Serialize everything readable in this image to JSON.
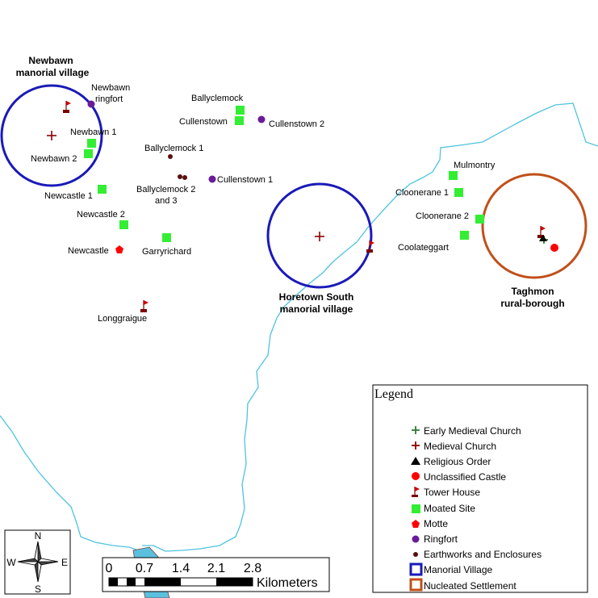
{
  "settlements": {
    "newbawn": [
      "Newbawn",
      "manorial village"
    ],
    "horetown": [
      "Horetown South",
      "manorial village"
    ],
    "taghmon": [
      "Taghmon",
      "rural-borough"
    ]
  },
  "sites": {
    "newbawn_ringfort": [
      "Newbawn",
      "ringfort"
    ],
    "ballyclemock": "Ballyclemock",
    "cullenstown": "Cullenstown",
    "cullenstown_2": "Cullenstown 2",
    "newbawn_1": "Newbawn 1",
    "newbawn_2": "Newbawn 2",
    "ballyclemock_1": "Ballyclemock 1",
    "ballyclemock_23": [
      "Ballyclemock 2",
      "and 3"
    ],
    "cullenstown_1": "Cullenstown 1",
    "newcastle_1": "Newcastle 1",
    "newcastle_2": "Newcastle 2",
    "newcastle": "Newcastle",
    "garryrichard": "Garryrichard",
    "longgraigue": "Longgraigue",
    "mulmontry": "Mulmontry",
    "clooneran_1": "Cloonerane 1",
    "clooneran_2": "Cloonerane 2",
    "coolateggart": "Coolateggart"
  },
  "legend": {
    "title": "Legend",
    "items": [
      {
        "label": "Early Medieval Church",
        "icon": "green-cross-icon",
        "color": "#2e7d32"
      },
      {
        "label": "Medieval Church",
        "icon": "red-cross-icon",
        "color": "#8b0000"
      },
      {
        "label": "Religious Order",
        "icon": "triangle-icon",
        "color": "#000000"
      },
      {
        "label": "Unclassified Castle",
        "icon": "red-dot-icon",
        "color": "#ff0000"
      },
      {
        "label": "Tower House",
        "icon": "flag-icon",
        "color": "#cc0000"
      },
      {
        "label": "Moated Site",
        "icon": "green-square-icon",
        "color": "#33ee33"
      },
      {
        "label": "Motte",
        "icon": "pentagon-icon",
        "color": "#ff0000"
      },
      {
        "label": "Ringfort",
        "icon": "purple-dot-icon",
        "color": "#6a1b9a"
      },
      {
        "label": "Earthworks and Enclosures",
        "icon": "small-dot-icon",
        "color": "#5a1010"
      },
      {
        "label": "Manorial Village",
        "icon": "blue-square-icon",
        "color": "#1a1ab8"
      },
      {
        "label": "Nucleated Settlement",
        "icon": "orange-square-icon",
        "color": "#c0501a"
      }
    ]
  },
  "scalebar": {
    "ticks": [
      "0",
      "0.7",
      "1.4",
      "2.1",
      "2.8"
    ],
    "unit": "Kilometers"
  },
  "north_arrow": {
    "n": "N",
    "s": "S",
    "e": "E",
    "w": "W"
  },
  "colors": {
    "river": "#4fc3e0",
    "manorial": "#1a1ab8",
    "nucleated": "#c0501a",
    "moated": "#33ee33",
    "ringfort": "#6a1b9a"
  }
}
